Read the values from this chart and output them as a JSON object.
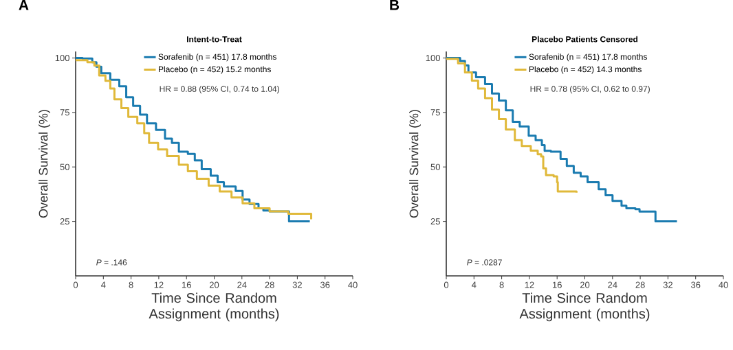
{
  "chart_data": [
    {
      "type": "step",
      "title": "Intent-to-Treat",
      "xlabel": "Time Since Random Assignment (months)",
      "ylabel": "Overall Survival (%)",
      "annotations": [
        "A",
        "HR = 0.88 (95% CI, 0.74 to 1.04)",
        "*P* = .146"
      ],
      "xlim": [
        0,
        40
      ],
      "ylim": [
        0,
        103
      ],
      "xticks": [
        0,
        4,
        8,
        12,
        16,
        20,
        24,
        28,
        32,
        36,
        40
      ],
      "yticks": [
        25,
        50,
        75,
        100
      ],
      "grid": false,
      "legend": "top right",
      "series": [
        {
          "name": "Sorafenib (n = 451) 17.8 months",
          "color": "#1a7bb0",
          "x": [
            0,
            1,
            2.4,
            3,
            3.7,
            5,
            6.3,
            7.3,
            8.3,
            9.3,
            10.3,
            11.6,
            12.9,
            13.9,
            14.9,
            16.2,
            17.2,
            18.2,
            19.5,
            20.5,
            21.4,
            23.1,
            24.1,
            25.1,
            26.4,
            27.1,
            28,
            30.8,
            33.8
          ],
          "values": [
            100,
            99.8,
            98,
            96,
            93,
            90,
            87,
            82,
            78,
            74,
            70,
            67,
            63,
            61,
            57,
            56,
            53,
            49,
            46,
            43,
            41,
            39,
            35,
            33,
            31,
            30,
            29.6,
            25,
            25
          ]
        },
        {
          "name": "Placebo (n = 452) 15.2 months",
          "color": "#e0b93a",
          "x": [
            0,
            1.7,
            2.7,
            3.4,
            4.3,
            5,
            5.6,
            6.6,
            7.6,
            8.9,
            9.9,
            10.6,
            11.9,
            13.2,
            14.9,
            16.2,
            17.5,
            19.2,
            20.8,
            22.5,
            24.1,
            25.8,
            28,
            30.7,
            34
          ],
          "values": [
            99,
            98,
            96.5,
            92,
            89.5,
            86,
            81,
            77,
            73,
            70,
            65.5,
            61,
            58,
            55,
            51,
            48,
            44.6,
            41.4,
            38.7,
            36,
            33.3,
            31,
            29.6,
            28.5,
            26
          ]
        }
      ]
    },
    {
      "type": "step",
      "title": "Placebo Patients Censored",
      "xlabel": "Time Since Random Assignment (months)",
      "ylabel": "Overall Survival (%)",
      "annotations": [
        "B",
        "HR = 0.78 (95% CI, 0.62 to 0.97)",
        "*P* = .0287"
      ],
      "xlim": [
        0,
        40
      ],
      "ylim": [
        0,
        103
      ],
      "xticks": [
        0,
        4,
        8,
        12,
        16,
        20,
        24,
        28,
        32,
        36,
        40
      ],
      "yticks": [
        25,
        50,
        75,
        100
      ],
      "grid": false,
      "legend": "top right",
      "series": [
        {
          "name": "Sorafenib (n = 451) 17.8 months",
          "color": "#1a7bb0",
          "x": [
            0,
            2,
            2.7,
            3.2,
            4.3,
            5.6,
            6.6,
            7.6,
            8.6,
            9.6,
            10.6,
            11.9,
            12.9,
            13.8,
            14.2,
            15.1,
            16.5,
            17.4,
            18.4,
            19.4,
            20.4,
            22,
            23,
            24,
            25.3,
            26,
            27.3,
            27.9,
            30.2,
            33.3
          ],
          "values": [
            100,
            98.7,
            96.6,
            93.4,
            91.2,
            88,
            83.7,
            80.5,
            76,
            70.7,
            68.6,
            64.3,
            62.3,
            60,
            57.4,
            57,
            53.7,
            50.5,
            47.3,
            45.7,
            43,
            39.8,
            37,
            34.4,
            32.2,
            31,
            30.6,
            29.5,
            25,
            25
          ]
        },
        {
          "name": "Placebo (n = 452) 14.3 months",
          "color": "#e0b93a",
          "x": [
            0,
            1.7,
            2.7,
            3.7,
            4.6,
            5.6,
            6.6,
            7.6,
            8.6,
            9.9,
            10.9,
            12.2,
            13.2,
            13.7,
            14,
            14.4,
            15.5,
            16,
            16.1,
            18.8
          ],
          "values": [
            99.6,
            97.6,
            93.4,
            89.6,
            86,
            81.6,
            76.3,
            72,
            67.2,
            62.3,
            59.6,
            57.5,
            55.8,
            54.8,
            49.4,
            46.2,
            45.7,
            43,
            38.7,
            38.2
          ]
        }
      ]
    }
  ]
}
